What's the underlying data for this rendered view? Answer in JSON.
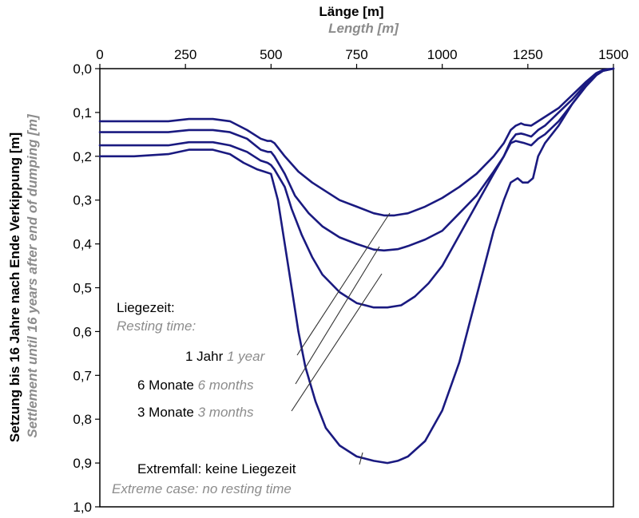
{
  "chart_data": {
    "type": "line",
    "title": "Länge [m]",
    "title_en": "Length [m]",
    "ylabel": "Setzung bis 16 Jahre nach Ende Verkippung [m]",
    "ylabel_en": "Settlement until 16 years after end of dumping [m]",
    "xlim": [
      0,
      1500
    ],
    "ylim": [
      0,
      1.0
    ],
    "y_inverted": true,
    "x_axis_position": "top",
    "grid": false,
    "x_ticks": [
      "0",
      "250",
      "500",
      "750",
      "1000",
      "1250",
      "1500"
    ],
    "y_ticks": [
      "0,0",
      "0,1",
      "0,2",
      "0,3",
      "0,4",
      "0,5",
      "0,6",
      "0,7",
      "0,8",
      "0,9",
      "1,0"
    ],
    "legend_title": "Liegezeit:",
    "legend_title_en": "Resting time:",
    "line_color": "#1a1a80",
    "series": [
      {
        "name": "1 Jahr",
        "name_en": "1 year",
        "x": [
          0,
          100,
          200,
          260,
          330,
          380,
          430,
          470,
          490,
          500,
          510,
          540,
          580,
          620,
          660,
          700,
          750,
          800,
          830,
          860,
          900,
          950,
          1000,
          1050,
          1100,
          1150,
          1180,
          1200,
          1215,
          1230,
          1240,
          1260,
          1280,
          1300,
          1340,
          1380,
          1420,
          1450,
          1470,
          1500
        ],
        "y": [
          0.12,
          0.12,
          0.12,
          0.115,
          0.115,
          0.12,
          0.14,
          0.16,
          0.165,
          0.165,
          0.17,
          0.2,
          0.235,
          0.26,
          0.28,
          0.3,
          0.315,
          0.33,
          0.335,
          0.335,
          0.33,
          0.315,
          0.295,
          0.27,
          0.24,
          0.2,
          0.17,
          0.14,
          0.13,
          0.125,
          0.128,
          0.13,
          0.12,
          0.11,
          0.09,
          0.06,
          0.03,
          0.01,
          0.003,
          0.0
        ]
      },
      {
        "name": "6 Monate",
        "name_en": "6 months",
        "x": [
          0,
          100,
          200,
          260,
          330,
          380,
          430,
          470,
          490,
          500,
          510,
          540,
          570,
          610,
          650,
          700,
          750,
          800,
          830,
          870,
          900,
          950,
          1000,
          1050,
          1100,
          1150,
          1180,
          1200,
          1215,
          1230,
          1240,
          1260,
          1280,
          1300,
          1340,
          1380,
          1420,
          1450,
          1470,
          1500
        ],
        "y": [
          0.145,
          0.145,
          0.145,
          0.14,
          0.14,
          0.145,
          0.16,
          0.185,
          0.19,
          0.19,
          0.2,
          0.24,
          0.29,
          0.33,
          0.36,
          0.385,
          0.4,
          0.413,
          0.415,
          0.412,
          0.405,
          0.39,
          0.37,
          0.33,
          0.29,
          0.235,
          0.2,
          0.165,
          0.15,
          0.148,
          0.15,
          0.155,
          0.14,
          0.13,
          0.1,
          0.07,
          0.035,
          0.012,
          0.004,
          0.0
        ]
      },
      {
        "name": "3 Monate",
        "name_en": "3 months",
        "x": [
          0,
          100,
          200,
          260,
          330,
          380,
          430,
          470,
          490,
          500,
          510,
          540,
          560,
          590,
          620,
          650,
          700,
          750,
          800,
          840,
          880,
          920,
          960,
          1000,
          1050,
          1100,
          1150,
          1180,
          1200,
          1215,
          1230,
          1240,
          1260,
          1280,
          1300,
          1340,
          1380,
          1420,
          1450,
          1470,
          1500
        ],
        "y": [
          0.175,
          0.175,
          0.175,
          0.168,
          0.168,
          0.175,
          0.19,
          0.21,
          0.215,
          0.22,
          0.23,
          0.27,
          0.32,
          0.38,
          0.43,
          0.47,
          0.51,
          0.535,
          0.545,
          0.545,
          0.54,
          0.52,
          0.49,
          0.45,
          0.38,
          0.31,
          0.24,
          0.2,
          0.17,
          0.165,
          0.168,
          0.17,
          0.175,
          0.16,
          0.15,
          0.12,
          0.08,
          0.04,
          0.015,
          0.005,
          0.0
        ]
      },
      {
        "name": "Extremfall: keine Liegezeit",
        "name_en": "Extreme case: no resting time",
        "x": [
          0,
          100,
          200,
          260,
          330,
          380,
          420,
          460,
          480,
          500,
          520,
          540,
          560,
          580,
          600,
          630,
          660,
          700,
          750,
          800,
          840,
          870,
          900,
          950,
          1000,
          1050,
          1100,
          1150,
          1180,
          1200,
          1220,
          1235,
          1250,
          1265,
          1280,
          1300,
          1340,
          1380,
          1420,
          1450,
          1470,
          1500
        ],
        "y": [
          0.2,
          0.2,
          0.195,
          0.185,
          0.185,
          0.195,
          0.215,
          0.23,
          0.235,
          0.24,
          0.3,
          0.4,
          0.5,
          0.6,
          0.68,
          0.76,
          0.82,
          0.86,
          0.885,
          0.895,
          0.9,
          0.895,
          0.885,
          0.85,
          0.78,
          0.67,
          0.52,
          0.37,
          0.3,
          0.26,
          0.25,
          0.26,
          0.26,
          0.25,
          0.2,
          0.17,
          0.13,
          0.08,
          0.04,
          0.015,
          0.005,
          0.0
        ]
      }
    ]
  }
}
